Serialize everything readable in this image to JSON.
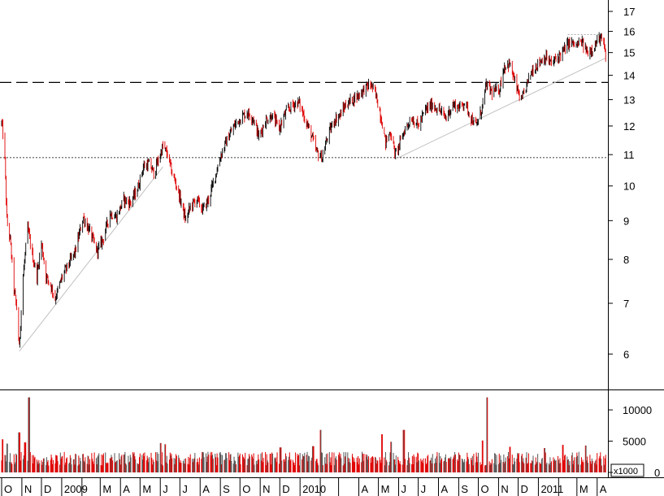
{
  "chart_data": [
    {
      "type": "candlestick",
      "scale": "log",
      "ylim": [
        5.4,
        17.6
      ],
      "y_ticks": [
        6,
        7,
        8,
        9,
        10,
        11,
        12,
        13,
        14,
        15,
        16,
        17
      ],
      "colors": {
        "up": "#000000",
        "down": "#e00000",
        "trendline": "#c0c0c0",
        "levels": "#000000"
      },
      "price_path": [
        [
          "2008-10-01",
          12.1
        ],
        [
          "2008-10-05",
          11.4
        ],
        [
          "2008-10-09",
          9.0
        ],
        [
          "2008-10-14",
          8.5
        ],
        [
          "2008-10-20",
          7.3
        ],
        [
          "2008-10-24",
          6.9
        ],
        [
          "2008-10-28",
          6.1
        ],
        [
          "2008-11-03",
          7.6
        ],
        [
          "2008-11-10",
          8.8
        ],
        [
          "2008-11-17",
          8.1
        ],
        [
          "2008-11-24",
          7.6
        ],
        [
          "2008-12-01",
          8.4
        ],
        [
          "2008-12-08",
          7.6
        ],
        [
          "2008-12-15",
          7.4
        ],
        [
          "2008-12-22",
          7.1
        ],
        [
          "2009-01-02",
          7.6
        ],
        [
          "2009-01-12",
          7.9
        ],
        [
          "2009-01-22",
          8.2
        ],
        [
          "2009-02-03",
          9.1
        ],
        [
          "2009-02-13",
          8.7
        ],
        [
          "2009-02-24",
          8.2
        ],
        [
          "2009-03-05",
          8.5
        ],
        [
          "2009-03-16",
          9.2
        ],
        [
          "2009-03-26",
          9.1
        ],
        [
          "2009-04-06",
          9.6
        ],
        [
          "2009-04-16",
          9.5
        ],
        [
          "2009-04-27",
          9.9
        ],
        [
          "2009-05-06",
          10.6
        ],
        [
          "2009-05-15",
          10.7
        ],
        [
          "2009-05-22",
          10.4
        ],
        [
          "2009-06-01",
          11.0
        ],
        [
          "2009-06-05",
          11.3
        ],
        [
          "2009-06-12",
          11.0
        ],
        [
          "2009-06-19",
          10.4
        ],
        [
          "2009-06-26",
          10.0
        ],
        [
          "2009-07-03",
          9.5
        ],
        [
          "2009-07-10",
          9.0
        ],
        [
          "2009-07-17",
          9.4
        ],
        [
          "2009-07-27",
          9.6
        ],
        [
          "2009-08-05",
          9.3
        ],
        [
          "2009-08-14",
          9.6
        ],
        [
          "2009-08-24",
          10.3
        ],
        [
          "2009-09-02",
          11.0
        ],
        [
          "2009-09-11",
          11.5
        ],
        [
          "2009-09-22",
          12.0
        ],
        [
          "2009-10-02",
          12.3
        ],
        [
          "2009-10-12",
          12.5
        ],
        [
          "2009-10-21",
          12.3
        ],
        [
          "2009-10-30",
          11.6
        ],
        [
          "2009-11-09",
          12.2
        ],
        [
          "2009-11-19",
          12.4
        ],
        [
          "2009-11-30",
          11.9
        ],
        [
          "2009-12-10",
          12.5
        ],
        [
          "2009-12-21",
          12.8
        ],
        [
          "2009-12-30",
          12.9
        ],
        [
          "2010-01-08",
          12.3
        ],
        [
          "2010-01-18",
          11.7
        ],
        [
          "2010-01-26",
          11.1
        ],
        [
          "2010-02-04",
          10.9
        ],
        [
          "2010-02-12",
          11.6
        ],
        [
          "2010-02-22",
          12.2
        ],
        [
          "2010-03-03",
          12.4
        ],
        [
          "2010-03-12",
          12.8
        ],
        [
          "2010-03-22",
          13.0
        ],
        [
          "2010-04-01",
          13.2
        ],
        [
          "2010-04-12",
          13.5
        ],
        [
          "2010-04-20",
          13.6
        ],
        [
          "2010-04-28",
          13.1
        ],
        [
          "2010-05-06",
          12.2
        ],
        [
          "2010-05-12",
          11.4
        ],
        [
          "2010-05-19",
          11.8
        ],
        [
          "2010-05-27",
          11.0
        ],
        [
          "2010-06-03",
          11.4
        ],
        [
          "2010-06-11",
          11.9
        ],
        [
          "2010-06-21",
          12.3
        ],
        [
          "2010-07-01",
          12.0
        ],
        [
          "2010-07-12",
          12.6
        ],
        [
          "2010-07-22",
          12.8
        ],
        [
          "2010-08-02",
          12.6
        ],
        [
          "2010-08-12",
          12.3
        ],
        [
          "2010-08-23",
          12.8
        ],
        [
          "2010-09-02",
          12.7
        ],
        [
          "2010-09-10",
          12.9
        ],
        [
          "2010-09-20",
          12.3
        ],
        [
          "2010-09-28",
          12.0
        ],
        [
          "2010-10-06",
          12.6
        ],
        [
          "2010-10-13",
          13.6
        ],
        [
          "2010-10-22",
          13.3
        ],
        [
          "2010-11-02",
          13.4
        ],
        [
          "2010-11-10",
          14.4
        ],
        [
          "2010-11-18",
          14.5
        ],
        [
          "2010-11-26",
          13.7
        ],
        [
          "2010-12-06",
          12.9
        ],
        [
          "2010-12-14",
          13.6
        ],
        [
          "2010-12-22",
          14.2
        ],
        [
          "2011-01-03",
          14.6
        ],
        [
          "2011-01-12",
          14.8
        ],
        [
          "2011-01-21",
          14.5
        ],
        [
          "2011-01-31",
          14.8
        ],
        [
          "2011-02-09",
          15.1
        ],
        [
          "2011-02-18",
          15.5
        ],
        [
          "2011-02-28",
          15.3
        ],
        [
          "2011-03-08",
          15.5
        ],
        [
          "2011-03-17",
          15.0
        ],
        [
          "2011-03-28",
          15.3
        ],
        [
          "2011-04-05",
          15.7
        ],
        [
          "2011-04-11",
          15.4
        ],
        [
          "2011-04-14",
          14.7
        ]
      ],
      "horizontal_levels": [
        {
          "price": 13.7,
          "style": "dashed"
        },
        {
          "price": 10.9,
          "style": "dotted"
        },
        {
          "price": 15.85,
          "style": "dotted-short",
          "from": "2011-02-15",
          "to": "2011-04-10"
        }
      ],
      "trendlines": [
        {
          "from": [
            "2008-10-28",
            6.05
          ],
          "to": [
            "2009-06-05",
            10.6
          ]
        },
        {
          "from": [
            "2010-05-27",
            10.85
          ],
          "to": [
            "2011-04-14",
            14.75
          ]
        }
      ]
    },
    {
      "type": "bar",
      "title": "",
      "unit_label": "x1000",
      "ylim": [
        0,
        13000
      ],
      "y_ticks": [
        0,
        5000,
        10000
      ],
      "baseline": 2200,
      "spikes": [
        [
          "2008-10-03",
          5300
        ],
        [
          "2008-10-10",
          4600
        ],
        [
          "2008-10-28",
          6400
        ],
        [
          "2008-11-06",
          4800
        ],
        [
          "2008-11-12",
          12000
        ],
        [
          "2009-06-01",
          4700
        ],
        [
          "2009-06-08",
          4500
        ],
        [
          "2009-12-02",
          4000
        ],
        [
          "2010-01-21",
          4200
        ],
        [
          "2010-02-01",
          6800
        ],
        [
          "2010-05-07",
          6100
        ],
        [
          "2010-05-21",
          4900
        ],
        [
          "2010-06-09",
          6800
        ],
        [
          "2010-10-08",
          5100
        ],
        [
          "2010-10-15",
          12000
        ],
        [
          "2010-11-19",
          4100
        ],
        [
          "2011-01-10",
          3900
        ],
        [
          "2011-02-07",
          4400
        ],
        [
          "2011-03-14",
          4300
        ]
      ]
    }
  ],
  "x_axis": {
    "month_labels": [
      "O",
      "N",
      "D",
      "2009",
      "M",
      "A",
      "M",
      "J",
      "J",
      "A",
      "S",
      "O",
      "N",
      "D",
      "2010",
      "A",
      "M",
      "J",
      "J",
      "A",
      "S",
      "O",
      "N",
      "D",
      "2011",
      "M",
      "A"
    ],
    "label_dates": [
      "2008-10-01",
      "2008-11-01",
      "2008-12-01",
      "2009-01-01",
      "2009-03-01",
      "2009-04-01",
      "2009-05-01",
      "2009-06-01",
      "2009-07-01",
      "2009-08-01",
      "2009-09-01",
      "2009-10-01",
      "2009-11-01",
      "2009-12-01",
      "2010-01-01",
      "2010-04-01",
      "2010-05-01",
      "2010-06-01",
      "2010-07-01",
      "2010-08-01",
      "2010-09-01",
      "2010-10-01",
      "2010-11-01",
      "2010-12-01",
      "2011-01-01",
      "2011-03-01",
      "2011-04-01"
    ],
    "tick_dates": [
      "2008-10-01",
      "2008-11-01",
      "2008-12-01",
      "2009-01-01",
      "2009-02-01",
      "2009-03-01",
      "2009-04-01",
      "2009-05-01",
      "2009-06-01",
      "2009-07-01",
      "2009-08-01",
      "2009-09-01",
      "2009-10-01",
      "2009-11-01",
      "2009-12-01",
      "2010-01-01",
      "2010-02-01",
      "2010-03-01",
      "2010-04-01",
      "2010-05-01",
      "2010-06-01",
      "2010-07-01",
      "2010-08-01",
      "2010-09-01",
      "2010-10-01",
      "2010-11-01",
      "2010-12-01",
      "2011-01-01",
      "2011-02-01",
      "2011-03-01",
      "2011-04-01"
    ],
    "range": [
      "2008-10-01",
      "2011-04-15"
    ]
  }
}
